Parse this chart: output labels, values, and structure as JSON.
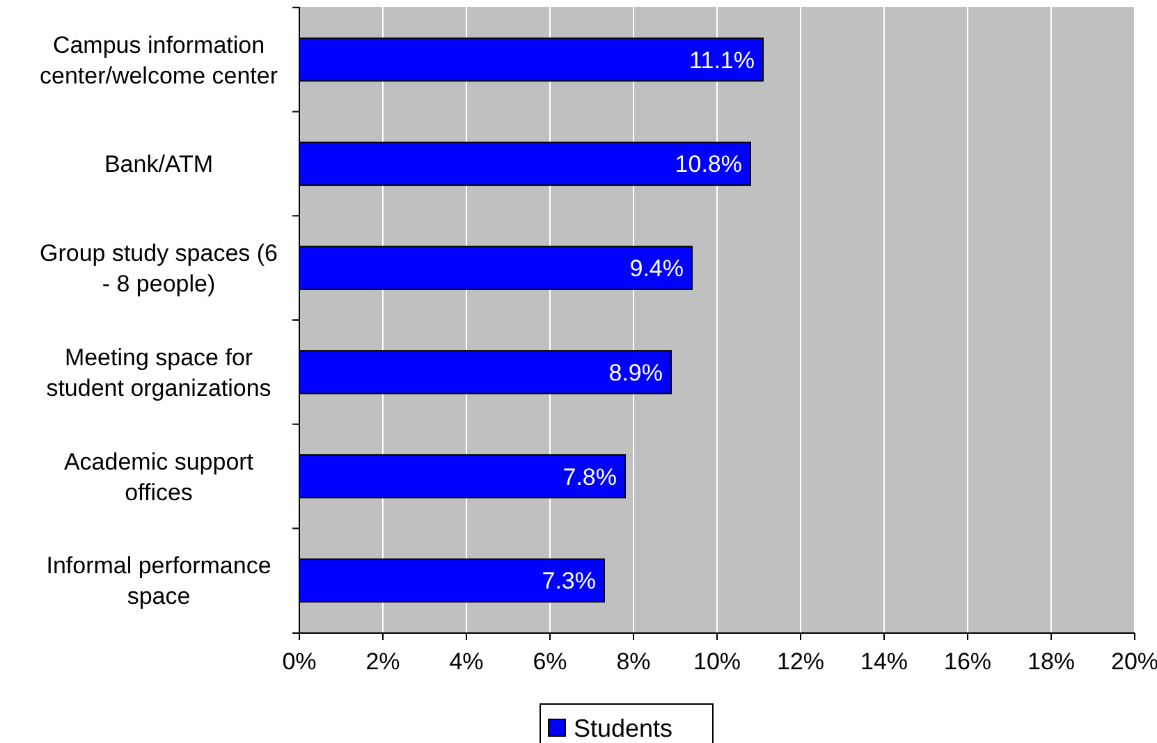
{
  "chart_data": {
    "type": "bar",
    "orientation": "horizontal",
    "categories": [
      "Campus information center/welcome center",
      "Bank/ATM",
      "Group study spaces (6 - 8 people)",
      "Meeting space for student organizations",
      "Academic support offices",
      "Informal performance space"
    ],
    "series": [
      {
        "name": "Students",
        "color": "#0000ff",
        "values": [
          11.1,
          10.8,
          9.4,
          8.9,
          7.8,
          7.3
        ],
        "value_labels": [
          "11.1%",
          "10.8%",
          "9.4%",
          "8.9%",
          "7.8%",
          "7.3%"
        ]
      }
    ],
    "xlim": [
      0,
      20
    ],
    "xticks": [
      {
        "value": 0,
        "label": "0%"
      },
      {
        "value": 2,
        "label": "2%"
      },
      {
        "value": 4,
        "label": "4%"
      },
      {
        "value": 6,
        "label": "6%"
      },
      {
        "value": 8,
        "label": "8%"
      },
      {
        "value": 10,
        "label": "10%"
      },
      {
        "value": 12,
        "label": "12%"
      },
      {
        "value": 14,
        "label": "14%"
      },
      {
        "value": 16,
        "label": "16%"
      },
      {
        "value": 18,
        "label": "18%"
      },
      {
        "value": 20,
        "label": "20%"
      }
    ],
    "grid": "x",
    "legend": "bottom"
  }
}
